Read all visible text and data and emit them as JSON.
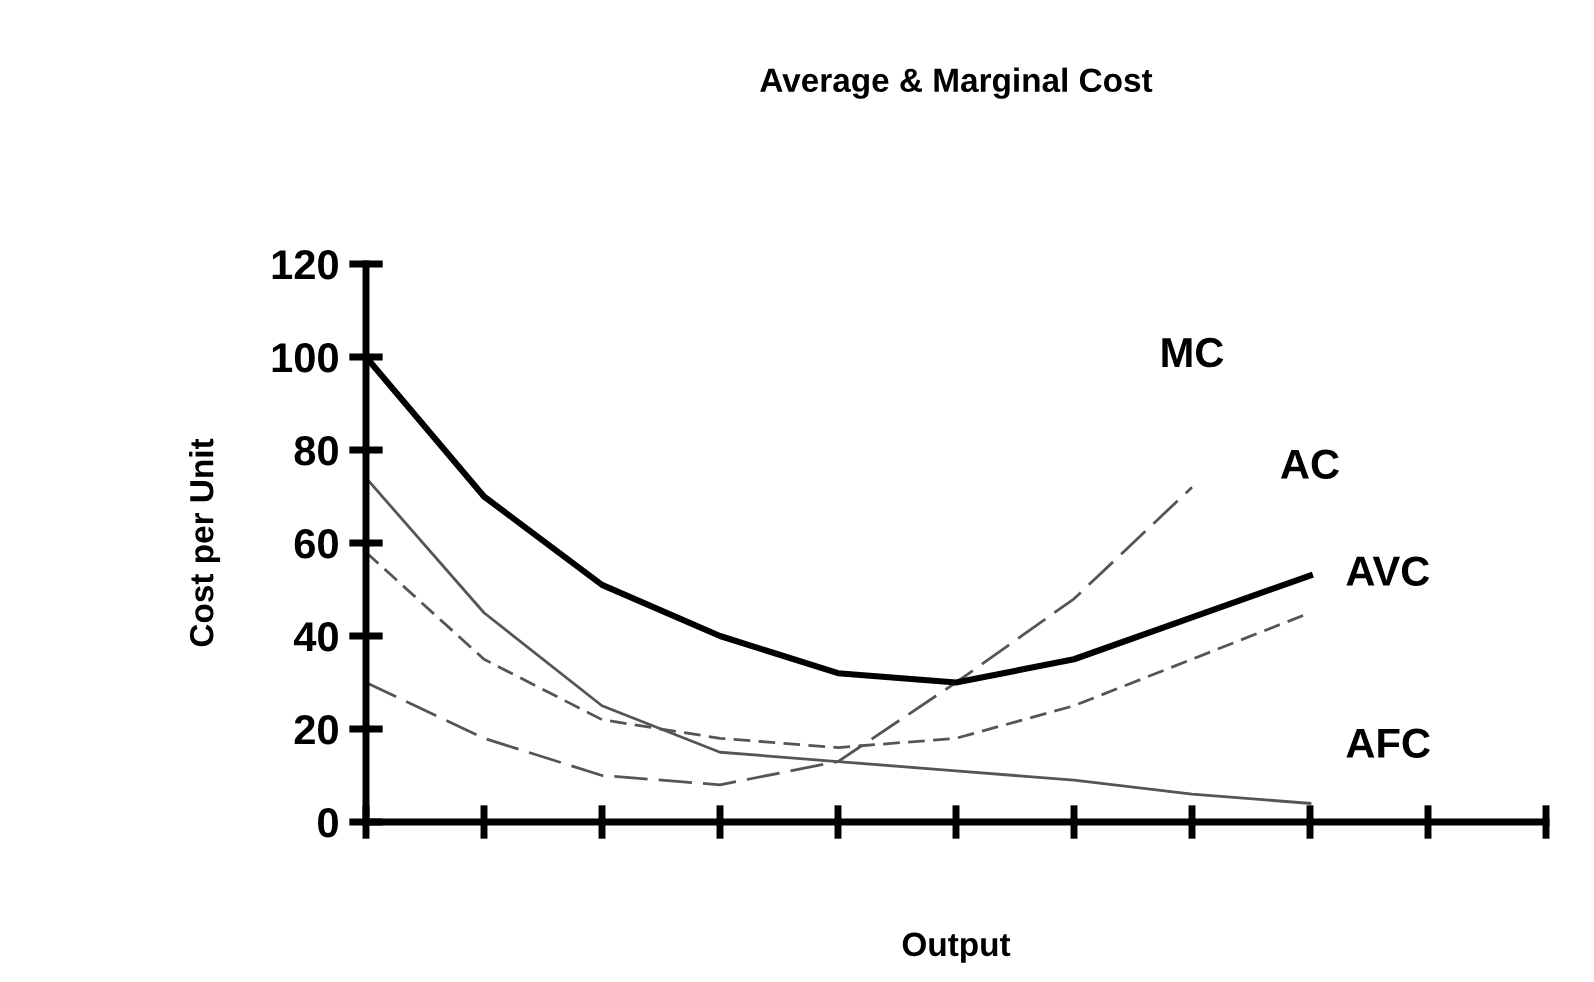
{
  "chart_data": {
    "type": "line",
    "title": "Average & Marginal Cost",
    "xlabel": "Output",
    "ylabel": "Cost per Unit",
    "categories": [
      null,
      null,
      null,
      null,
      null,
      null,
      null,
      null,
      null,
      null,
      null
    ],
    "ylim": [
      0,
      120
    ],
    "yticks": [
      0,
      20,
      40,
      60,
      80,
      100,
      120
    ],
    "grid": false,
    "legend": false,
    "marker": "none",
    "series": [
      {
        "name": "MC",
        "color": "#555555",
        "line_style": "dashed",
        "values": [
          30,
          18,
          10,
          8,
          13,
          30,
          48,
          72,
          null,
          null,
          null
        ]
      },
      {
        "name": "AC",
        "color": "#000000",
        "line_style": "solid",
        "values": [
          100,
          70,
          51,
          40,
          32,
          30,
          35,
          44,
          53,
          null,
          null
        ]
      },
      {
        "name": "AVC",
        "color": "#555555",
        "line_style": "dashed",
        "values": [
          58,
          35,
          22,
          18,
          16,
          18,
          25,
          35,
          45,
          null,
          null
        ]
      },
      {
        "name": "AFC",
        "color": "#555555",
        "line_style": "solid",
        "values": [
          74,
          45,
          25,
          15,
          13,
          11,
          9,
          6,
          4,
          null,
          null
        ]
      }
    ]
  }
}
